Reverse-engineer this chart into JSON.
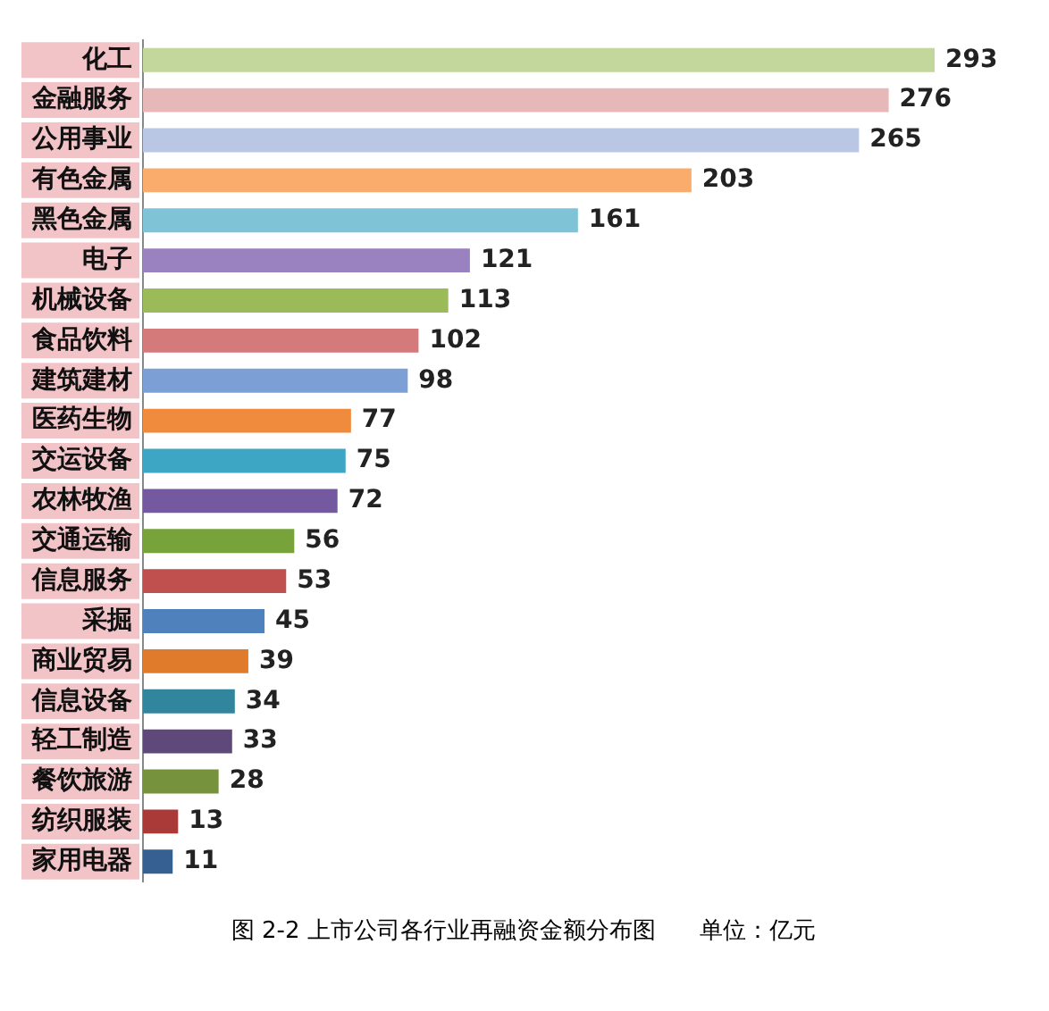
{
  "chart_data": {
    "type": "bar",
    "orientation": "horizontal",
    "data_labels": true,
    "grid": false,
    "legend": false,
    "categories": [
      "化工",
      "金融服务",
      "公用事业",
      "有色金属",
      "黑色金属",
      "电子",
      "机械设备",
      "食品饮料",
      "建筑建材",
      "医药生物",
      "交运设备",
      "农林牧渔",
      "交通运输",
      "信息服务",
      "采掘",
      "商业贸易",
      "信息设备",
      "轻工制造",
      "餐饮旅游",
      "纺织服装",
      "家用电器"
    ],
    "values": [
      293,
      276,
      265,
      203,
      161,
      121,
      113,
      102,
      98,
      77,
      75,
      72,
      56,
      53,
      45,
      39,
      34,
      33,
      28,
      13,
      11
    ],
    "colors": [
      "#c3d69b",
      "#e6b9b8",
      "#b9c7e4",
      "#f9ac6b",
      "#7fc4d6",
      "#9a82c0",
      "#9bbb59",
      "#d47a7a",
      "#7c9fd6",
      "#f08a3c",
      "#3da6c4",
      "#7559a0",
      "#77a33a",
      "#c0504d",
      "#4f81bd",
      "#e07b2c",
      "#31859c",
      "#5f497a",
      "#76923c",
      "#a93a38",
      "#366092"
    ],
    "annotations": [
      "图 2-2 上市公司各行业再融资金额分布图      单位：亿元"
    ]
  }
}
